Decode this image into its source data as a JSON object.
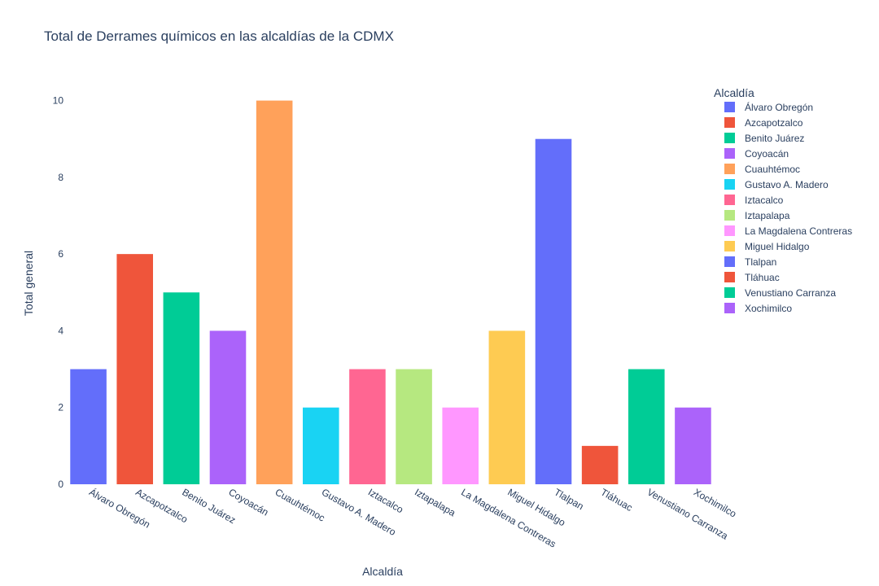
{
  "chart_data": {
    "type": "bar",
    "title": "Total de Derrames químicos en las alcaldías de la CDMX",
    "xlabel": "Alcaldía",
    "ylabel": "Total general",
    "ylim": [
      0,
      10.5
    ],
    "yticks": [
      "0",
      "2",
      "4",
      "6",
      "8",
      "10"
    ],
    "grid": false,
    "legend_title": "Alcaldía",
    "legend_position": "right",
    "categories": [
      "Álvaro Obregón",
      "Azcapotzalco",
      "Benito Juárez",
      "Coyoacán",
      "Cuauhtémoc",
      "Gustavo A. Madero",
      "Iztacalco",
      "Iztapalapa",
      "La Magdalena Contreras",
      "Miguel Hidalgo",
      "Tlalpan",
      "Tláhuac",
      "Venustiano Carranza",
      "Xochimilco"
    ],
    "values": [
      3,
      6,
      5,
      4,
      10,
      2,
      3,
      3,
      2,
      4,
      9,
      1,
      3,
      2
    ],
    "colors": [
      "#636efa",
      "#EF553B",
      "#00cc96",
      "#ab63fa",
      "#FFA15A",
      "#19d3f3",
      "#FF6692",
      "#B6E880",
      "#FF97FF",
      "#FECB52",
      "#636efa",
      "#EF553B",
      "#00cc96",
      "#ab63fa"
    ]
  }
}
